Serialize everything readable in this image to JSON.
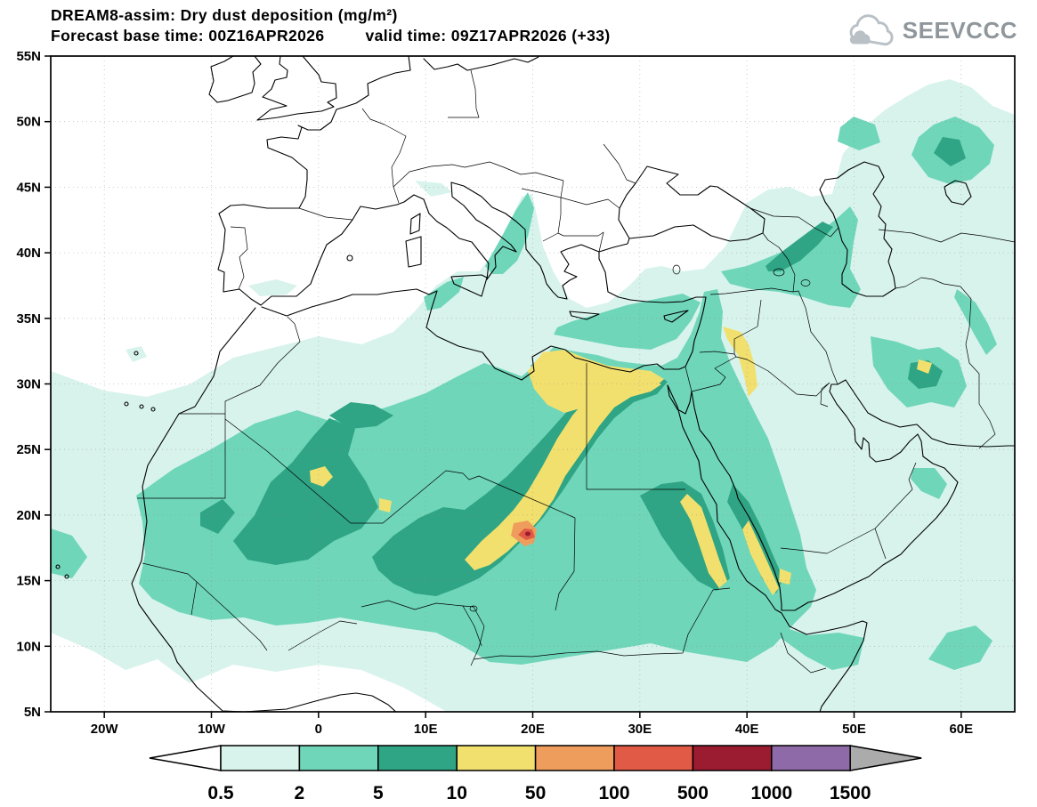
{
  "header": {
    "title": "DREAM8-assim: Dry dust deposition (mg/m²)",
    "base_time_label": "Forecast base time: 00Z16APR2026",
    "valid_time_label": "valid time: 09Z17APR2026 (+33)",
    "logo_text": "SEEVCCC"
  },
  "chart_data": {
    "type": "heatmap",
    "title": "DREAM8-assim: Dry dust deposition (mg/m²)",
    "variable": "Dry dust deposition",
    "units": "mg/m²",
    "forecast_base_time": "00Z16APR2026",
    "valid_time": "09Z17APR2026",
    "forecast_hour": "+33",
    "projection": "lat-lon",
    "lon_range": [
      -25,
      65
    ],
    "lat_range": [
      5,
      55
    ],
    "grid_step": {
      "lat": 5,
      "lon": 10
    },
    "legend_position": "bottom",
    "lat_ticks": [
      {
        "label": "55N",
        "value": 55
      },
      {
        "label": "50N",
        "value": 50
      },
      {
        "label": "45N",
        "value": 45
      },
      {
        "label": "40N",
        "value": 40
      },
      {
        "label": "35N",
        "value": 35
      },
      {
        "label": "30N",
        "value": 30
      },
      {
        "label": "25N",
        "value": 25
      },
      {
        "label": "20N",
        "value": 20
      },
      {
        "label": "15N",
        "value": 15
      },
      {
        "label": "10N",
        "value": 10
      },
      {
        "label": "5N",
        "value": 5
      }
    ],
    "lon_ticks": [
      {
        "label": "20W",
        "value": -20
      },
      {
        "label": "10W",
        "value": -10
      },
      {
        "label": "0",
        "value": 0
      },
      {
        "label": "10E",
        "value": 10
      },
      {
        "label": "20E",
        "value": 20
      },
      {
        "label": "30E",
        "value": 30
      },
      {
        "label": "40E",
        "value": 40
      },
      {
        "label": "50E",
        "value": 50
      },
      {
        "label": "60E",
        "value": 60
      }
    ],
    "levels": [
      {
        "min": 0.5,
        "max": 2,
        "color": "#d8f3ec"
      },
      {
        "min": 2,
        "max": 5,
        "color": "#6fd6b9"
      },
      {
        "min": 5,
        "max": 10,
        "color": "#2fa585"
      },
      {
        "min": 10,
        "max": 50,
        "color": "#f2e06e"
      },
      {
        "min": 50,
        "max": 100,
        "color": "#ef9d5c"
      },
      {
        "min": 100,
        "max": 500,
        "color": "#e05a45"
      },
      {
        "min": 500,
        "max": 1000,
        "color": "#9b1b30"
      },
      {
        "min": 1000,
        "max": 1500,
        "color": "#8f6aa8"
      }
    ],
    "max_regions": [
      {
        "location": "~19E, 18.5N (Bodele / Tibesti, Chad)",
        "range_mg_m2": "100-500"
      },
      {
        "location": "NE Libya - NW Egypt coast",
        "range_mg_m2": "10-50"
      },
      {
        "location": "Central Algeria - Niger - Chad diagonal band",
        "range_mg_m2": "10-50"
      },
      {
        "location": "Sudan / Saudi Red Sea coasts",
        "range_mg_m2": "10-50"
      },
      {
        "location": "Syria - Iraq - N Saudi streaks",
        "range_mg_m2": "10-50"
      },
      {
        "location": "Caucasus - S Caspian",
        "range_mg_m2": "2-10"
      },
      {
        "location": "Sahara / Sahel / Arabia background",
        "range_mg_m2": "0.5-10"
      }
    ]
  },
  "colorbar": {
    "tick_labels": [
      "0.5",
      "2",
      "5",
      "10",
      "50",
      "100",
      "500",
      "1000",
      "1500"
    ],
    "cell_colors": [
      "#d8f3ec",
      "#6fd6b9",
      "#2fa585",
      "#f2e06e",
      "#ef9d5c",
      "#e05a45",
      "#9b1b30",
      "#8f6aa8"
    ],
    "under_color": "#ffffff",
    "over_color": "#ababab"
  }
}
